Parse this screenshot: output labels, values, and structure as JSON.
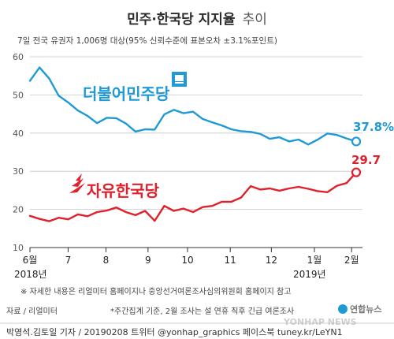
{
  "chart_data": {
    "type": "line",
    "title_main": "민주·한국당 지지율",
    "title_tail": "추이",
    "subtitle": "7일 전국 유권자 1,006명 대상(95% 신뢰수준에 표본오차 ±3.1%포인트)",
    "ylim": [
      10,
      60
    ],
    "yticks": [
      "10",
      "20",
      "30",
      "40",
      "50",
      "60"
    ],
    "month_labels": [
      "6월",
      "7",
      "8",
      "9",
      "10",
      "11",
      "12",
      "1월",
      "2월"
    ],
    "year_labels": [
      "2018년",
      "2019년"
    ],
    "series": [
      {
        "name": "더불어민주당",
        "color": "#1f9ad6",
        "values": [
          53.7,
          57.2,
          54.3,
          49.8,
          48.0,
          45.9,
          44.5,
          42.6,
          44.0,
          43.9,
          42.5,
          40.4,
          41.0,
          40.9,
          44.9,
          46.1,
          45.2,
          45.6,
          43.7,
          42.8,
          42.0,
          41.0,
          40.5,
          40.3,
          39.8,
          38.5,
          38.9,
          37.8,
          38.3,
          37.0,
          38.3,
          39.9,
          39.5,
          38.6,
          37.8
        ]
      },
      {
        "name": "자유한국당",
        "color": "#e0212b",
        "values": [
          18.3,
          17.5,
          16.9,
          17.8,
          17.4,
          18.7,
          18.2,
          19.3,
          19.7,
          20.5,
          19.3,
          18.5,
          19.6,
          17.0,
          20.9,
          19.6,
          20.2,
          19.3,
          20.6,
          20.9,
          22.0,
          22.0,
          23.1,
          26.1,
          25.2,
          25.5,
          24.9,
          25.5,
          25.9,
          25.4,
          24.8,
          24.5,
          26.2,
          26.9,
          29.7
        ]
      }
    ],
    "end_labels": {
      "dem": "37.8%",
      "lkp": "29.7"
    }
  },
  "notes": {
    "note1": "※ 자세한 내용은 리얼미터 홈페이지나 중앙선거여론조사심의위원회 홈페이지 참고",
    "note2": "*주간집계 기준, 2월 조사는 설 연휴 직후 긴급 여론조사",
    "source": "자료 / 리얼미터",
    "credit": "박영석.김토일 기자 / 20190208 트위터 @yonhap_graphics  페이스북 tuney.kr/LeYN1",
    "watermark": "연합뉴스",
    "yonhap": "YONHAP NEWS"
  }
}
